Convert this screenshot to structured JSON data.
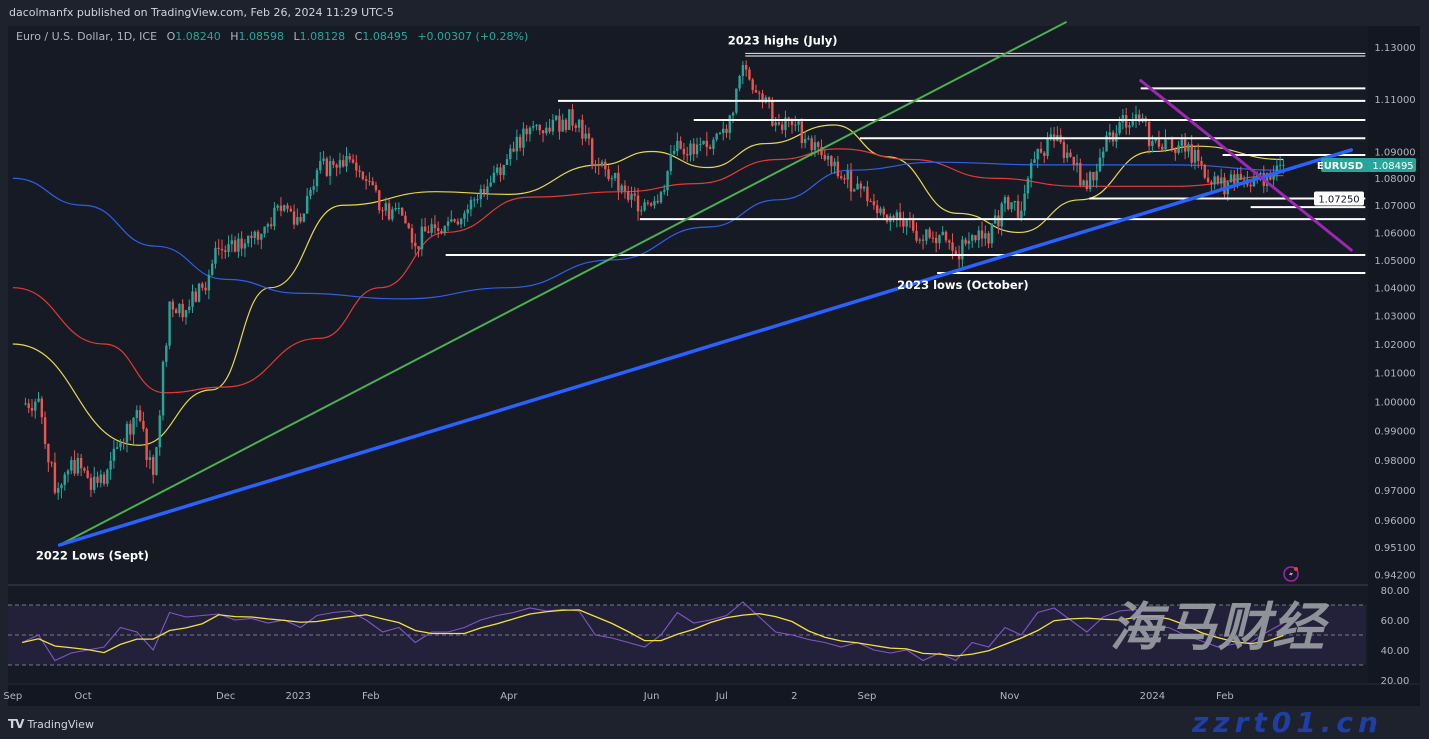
{
  "header": {
    "published": "dacolmanfx published on TradingView.com, Feb 26, 2024 11:29 UTC-5",
    "symbol_desc": "Euro / U.S. Dollar, 1D, ICE",
    "open_label": "O",
    "open": "1.08240",
    "high_label": "H",
    "high": "1.08598",
    "low_label": "L",
    "low": "1.08128",
    "close_label": "C",
    "close": "1.08495",
    "change": "+0.00307 (+0.28%)"
  },
  "footer": {
    "logo_text": "TradingView"
  },
  "watermark": {
    "line1": "海马财经",
    "line2": "zzrt01.cn"
  },
  "chart_data": {
    "type": "candlestick",
    "symbol": "EURUSD",
    "interval": "1D",
    "y_scale": "log",
    "ylim": [
      0.942,
      1.13
    ],
    "colors": {
      "up": "#26a69a",
      "down": "#ef5350",
      "ma_yellow": "#e6d84a",
      "ma_red": "#e53935",
      "ma_blue": "#2f5fe6",
      "rsi": "#7e57c2",
      "rsi_ma": "#f2e03c"
    },
    "y_ticks": [
      "1.13000",
      "1.11000",
      "1.09000",
      "1.08000",
      "1.07000",
      "1.06000",
      "1.05000",
      "1.04000",
      "1.03000",
      "1.02000",
      "1.01000",
      "1.00000",
      "0.99000",
      "0.98000",
      "0.97000",
      "0.96000",
      "0.95100",
      "0.94200"
    ],
    "x_ticks": [
      {
        "label": "Sep",
        "date": "2022-09-01"
      },
      {
        "label": "Oct",
        "date": "2022-10-01"
      },
      {
        "label": "Dec",
        "date": "2022-12-01"
      },
      {
        "label": "2023",
        "date": "2023-01-01"
      },
      {
        "label": "Feb",
        "date": "2023-02-01"
      },
      {
        "label": "Apr",
        "date": "2023-04-01"
      },
      {
        "label": "Jun",
        "date": "2023-06-01"
      },
      {
        "label": "Jul",
        "date": "2023-07-01"
      },
      {
        "label": "2",
        "date": "2023-08-01"
      },
      {
        "label": "Sep",
        "date": "2023-09-01"
      },
      {
        "label": "Nov",
        "date": "2023-11-01"
      },
      {
        "label": "2024",
        "date": "2024-01-01"
      },
      {
        "label": "Feb",
        "date": "2024-02-01"
      }
    ],
    "last_price": {
      "symbol": "EURUSD",
      "value": 1.08495,
      "label": "1.08495",
      "color": "#26a69a"
    },
    "marked_level": {
      "value": 1.0725,
      "label": "1.07250"
    },
    "weekly_closes": [
      [
        "2022-09-05",
        0.999
      ],
      [
        "2022-09-12",
        1.001
      ],
      [
        "2022-09-19",
        0.969
      ],
      [
        "2022-09-26",
        0.98
      ],
      [
        "2022-10-03",
        0.974
      ],
      [
        "2022-10-10",
        0.972
      ],
      [
        "2022-10-17",
        0.986
      ],
      [
        "2022-10-24",
        0.997
      ],
      [
        "2022-10-31",
        0.975
      ],
      [
        "2022-11-07",
        1.035
      ],
      [
        "2022-11-14",
        1.032
      ],
      [
        "2022-11-21",
        1.04
      ],
      [
        "2022-11-28",
        1.054
      ],
      [
        "2022-12-05",
        1.053
      ],
      [
        "2022-12-12",
        1.058
      ],
      [
        "2022-12-19",
        1.063
      ],
      [
        "2022-12-26",
        1.07
      ],
      [
        "2023-01-02",
        1.064
      ],
      [
        "2023-01-09",
        1.083
      ],
      [
        "2023-01-16",
        1.085
      ],
      [
        "2023-01-23",
        1.087
      ],
      [
        "2023-01-30",
        1.079
      ],
      [
        "2023-02-06",
        1.068
      ],
      [
        "2023-02-13",
        1.069
      ],
      [
        "2023-02-20",
        1.055
      ],
      [
        "2023-02-27",
        1.063
      ],
      [
        "2023-03-06",
        1.064
      ],
      [
        "2023-03-13",
        1.067
      ],
      [
        "2023-03-20",
        1.076
      ],
      [
        "2023-03-27",
        1.084
      ],
      [
        "2023-04-03",
        1.09
      ],
      [
        "2023-04-10",
        1.099
      ],
      [
        "2023-04-17",
        1.099
      ],
      [
        "2023-04-24",
        1.102
      ],
      [
        "2023-05-01",
        1.102
      ],
      [
        "2023-05-08",
        1.085
      ],
      [
        "2023-05-15",
        1.08
      ],
      [
        "2023-05-22",
        1.072
      ],
      [
        "2023-05-29",
        1.071
      ],
      [
        "2023-06-05",
        1.075
      ],
      [
        "2023-06-12",
        1.094
      ],
      [
        "2023-06-19",
        1.089
      ],
      [
        "2023-06-26",
        1.091
      ],
      [
        "2023-07-03",
        1.097
      ],
      [
        "2023-07-10",
        1.123
      ],
      [
        "2023-07-17",
        1.112
      ],
      [
        "2023-07-24",
        1.101
      ],
      [
        "2023-07-31",
        1.1
      ],
      [
        "2023-08-07",
        1.095
      ],
      [
        "2023-08-14",
        1.087
      ],
      [
        "2023-08-21",
        1.08
      ],
      [
        "2023-08-28",
        1.078
      ],
      [
        "2023-09-04",
        1.07
      ],
      [
        "2023-09-11",
        1.066
      ],
      [
        "2023-09-18",
        1.065
      ],
      [
        "2023-09-25",
        1.057
      ],
      [
        "2023-10-02",
        1.059
      ],
      [
        "2023-10-09",
        1.052
      ],
      [
        "2023-10-16",
        1.059
      ],
      [
        "2023-10-23",
        1.056
      ],
      [
        "2023-10-30",
        1.073
      ],
      [
        "2023-11-06",
        1.068
      ],
      [
        "2023-11-13",
        1.091
      ],
      [
        "2023-11-20",
        1.094
      ],
      [
        "2023-11-27",
        1.088
      ],
      [
        "2023-12-04",
        1.076
      ],
      [
        "2023-12-11",
        1.09
      ],
      [
        "2023-12-18",
        1.101
      ],
      [
        "2023-12-25",
        1.104
      ],
      [
        "2024-01-01",
        1.094
      ],
      [
        "2024-01-08",
        1.095
      ],
      [
        "2024-01-15",
        1.09
      ],
      [
        "2024-01-22",
        1.085
      ],
      [
        "2024-01-29",
        1.078
      ],
      [
        "2024-02-05",
        1.078
      ],
      [
        "2024-02-12",
        1.077
      ],
      [
        "2024-02-19",
        1.082
      ],
      [
        "2024-02-26",
        1.085
      ]
    ],
    "moving_averages": [
      {
        "color": "#e6d84a",
        "points": [
          [
            "2022-09-01",
            1.02
          ],
          [
            "2022-10-25",
            0.985
          ],
          [
            "2022-11-25",
            1.004
          ],
          [
            "2022-12-20",
            1.04
          ],
          [
            "2023-01-20",
            1.07
          ],
          [
            "2023-03-01",
            1.075
          ],
          [
            "2023-04-01",
            1.074
          ],
          [
            "2023-05-10",
            1.085
          ],
          [
            "2023-06-01",
            1.09
          ],
          [
            "2023-06-25",
            1.084
          ],
          [
            "2023-07-20",
            1.093
          ],
          [
            "2023-08-18",
            1.1
          ],
          [
            "2023-09-10",
            1.088
          ],
          [
            "2023-10-10",
            1.067
          ],
          [
            "2023-11-05",
            1.06
          ],
          [
            "2023-12-01",
            1.072
          ],
          [
            "2024-01-01",
            1.09
          ],
          [
            "2024-01-20",
            1.092
          ],
          [
            "2024-02-26",
            1.087
          ]
        ]
      },
      {
        "color": "#e53935",
        "points": [
          [
            "2022-09-01",
            1.04
          ],
          [
            "2022-10-10",
            1.02
          ],
          [
            "2022-11-05",
            1.003
          ],
          [
            "2022-12-01",
            1.005
          ],
          [
            "2023-01-10",
            1.022
          ],
          [
            "2023-02-05",
            1.04
          ],
          [
            "2023-03-05",
            1.06
          ],
          [
            "2023-04-10",
            1.073
          ],
          [
            "2023-05-20",
            1.075
          ],
          [
            "2023-06-20",
            1.078
          ],
          [
            "2023-07-25",
            1.087
          ],
          [
            "2023-08-20",
            1.091
          ],
          [
            "2023-09-20",
            1.087
          ],
          [
            "2023-10-25",
            1.08
          ],
          [
            "2023-12-01",
            1.077
          ],
          [
            "2024-01-10",
            1.077
          ],
          [
            "2024-02-26",
            1.081
          ]
        ]
      },
      {
        "color": "#2f5fe6",
        "points": [
          [
            "2022-09-01",
            1.08
          ],
          [
            "2022-10-01",
            1.07
          ],
          [
            "2022-11-01",
            1.055
          ],
          [
            "2022-12-01",
            1.043
          ],
          [
            "2023-01-01",
            1.038
          ],
          [
            "2023-02-15",
            1.036
          ],
          [
            "2023-04-01",
            1.04
          ],
          [
            "2023-05-15",
            1.05
          ],
          [
            "2023-06-25",
            1.062
          ],
          [
            "2023-07-25",
            1.072
          ],
          [
            "2023-08-25",
            1.083
          ],
          [
            "2023-10-01",
            1.086
          ],
          [
            "2023-11-15",
            1.085
          ],
          [
            "2024-01-10",
            1.085
          ],
          [
            "2024-02-26",
            1.083
          ]
        ]
      }
    ],
    "horizontal_levels": [
      {
        "value": 1.1275,
        "from": "2023-07-11",
        "color": "#d1d4dc"
      },
      {
        "value": 1.1265,
        "from": "2023-07-11",
        "color": "#d1d4dc"
      },
      {
        "value": 1.114,
        "from": "2023-12-27",
        "color": "#ffffff"
      },
      {
        "value": 1.1092,
        "from": "2023-04-22",
        "color": "#ffffff"
      },
      {
        "value": 1.1019,
        "from": "2023-06-19",
        "color": "#ffffff"
      },
      {
        "value": 1.095,
        "from": "2023-08-29",
        "color": "#ffffff"
      },
      {
        "value": 1.0887,
        "from": "2024-01-31",
        "color": "#ffffff"
      },
      {
        "value": 1.0725,
        "from": "2023-12-05",
        "color": "#ffffff"
      },
      {
        "value": 1.0693,
        "from": "2024-02-12",
        "color": "#ffffff"
      },
      {
        "value": 1.0649,
        "from": "2023-05-27",
        "color": "#ffffff"
      },
      {
        "value": 1.0518,
        "from": "2023-03-05",
        "color": "#ffffff"
      },
      {
        "value": 1.0453,
        "from": "2023-10-01",
        "color": "#ffffff"
      }
    ],
    "levels_end": "2024-04-01",
    "trendlines": [
      {
        "color": "#4caf50",
        "from": [
          "2022-09-21",
          0.9517
        ],
        "to": [
          "2023-11-25",
          1.1397
        ]
      },
      {
        "color": "#2962ff",
        "from": [
          "2022-09-21",
          0.9517
        ],
        "to": [
          "2024-03-26",
          1.0906
        ]
      },
      {
        "color": "#9c27b0",
        "from": [
          "2023-12-27",
          1.117
        ],
        "to": [
          "2024-03-26",
          1.0536
        ]
      }
    ],
    "annotations": [
      {
        "text": "2023 highs (July)",
        "date": "2023-07-27",
        "price": 1.131
      },
      {
        "text": "2023 lows (October)",
        "date": "2023-10-12",
        "price": 1.0395
      },
      {
        "text": "2022 Lows (Sept)",
        "date": "2022-10-05",
        "price": 0.947
      }
    ],
    "rsi": {
      "ylim": [
        10,
        90
      ],
      "y_ticks": [
        "80.00",
        "60.00",
        "40.00",
        "20.00"
      ],
      "bands": [
        70,
        50,
        30
      ],
      "values": [
        45,
        50,
        33,
        38,
        40,
        42,
        55,
        52,
        40,
        65,
        62,
        63,
        64,
        60,
        61,
        58,
        60,
        55,
        63,
        65,
        66,
        60,
        52,
        55,
        45,
        52,
        52,
        55,
        60,
        63,
        65,
        68,
        66,
        67,
        66,
        50,
        48,
        45,
        42,
        50,
        65,
        58,
        60,
        63,
        72,
        62,
        52,
        50,
        47,
        45,
        42,
        45,
        40,
        38,
        40,
        33,
        38,
        33,
        45,
        42,
        55,
        50,
        65,
        68,
        60,
        52,
        62,
        66,
        67,
        55,
        55,
        50,
        46,
        42,
        44,
        45,
        52,
        58
      ]
    }
  }
}
